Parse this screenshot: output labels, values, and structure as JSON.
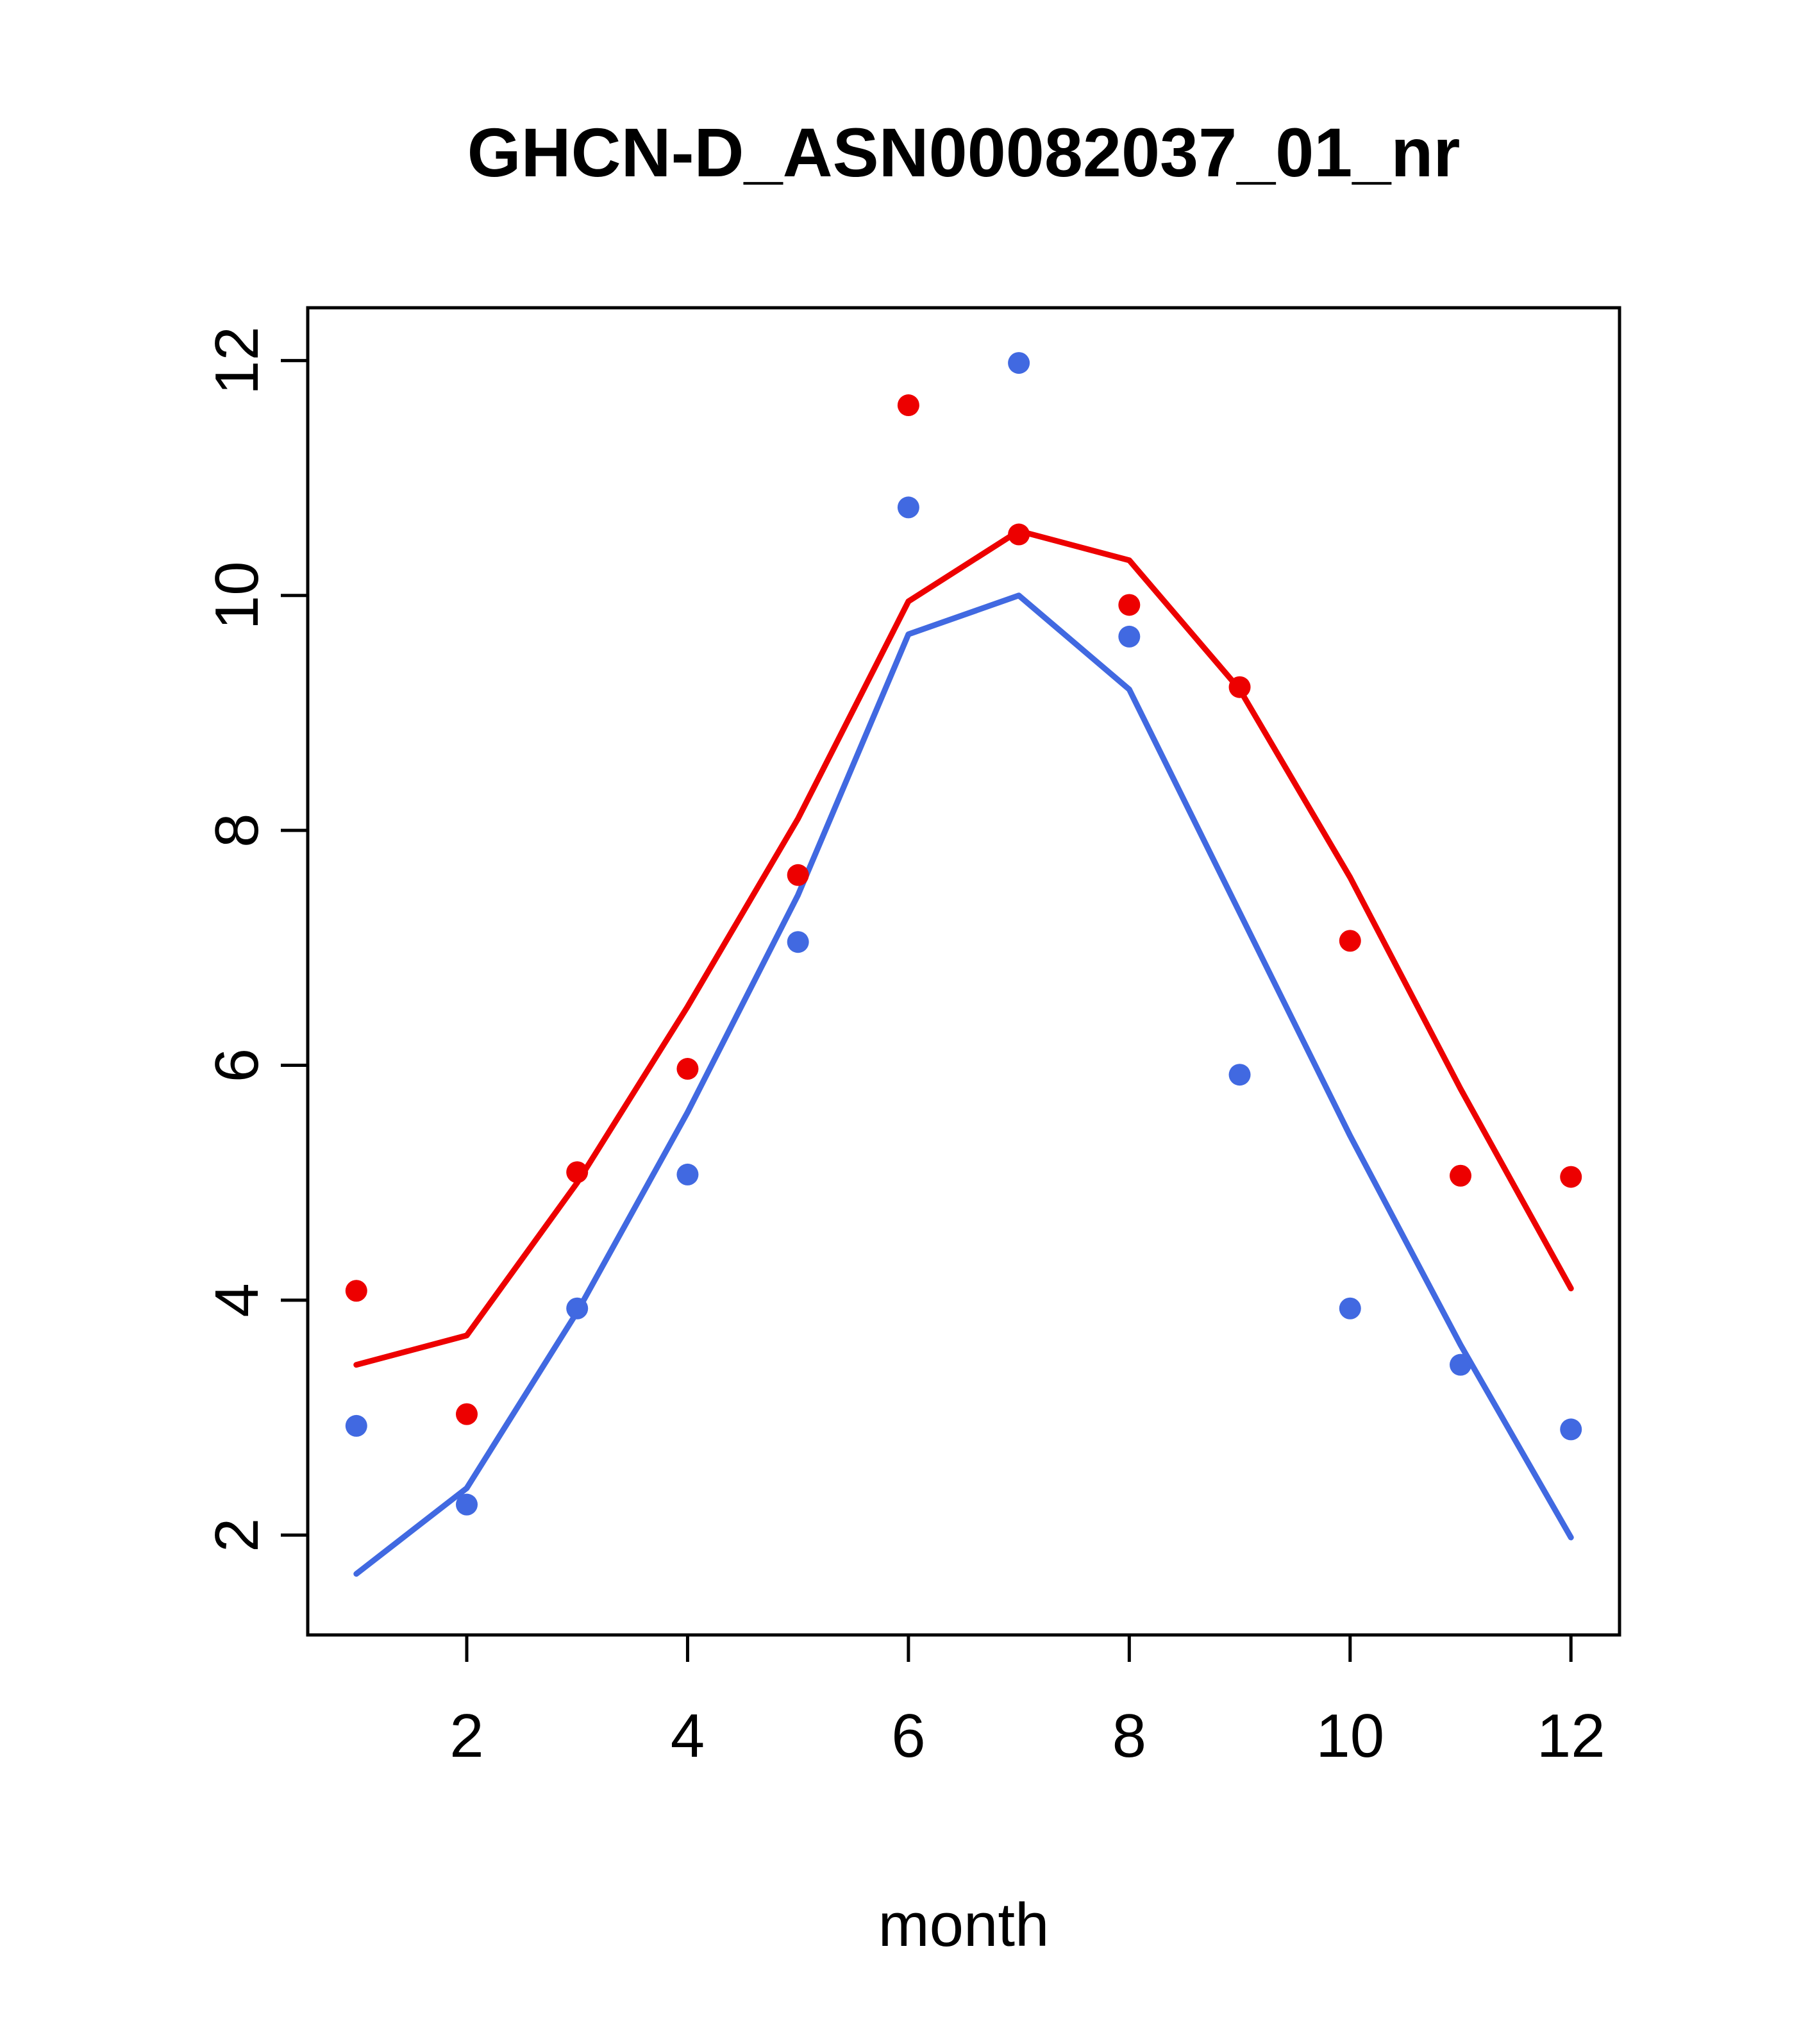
{
  "chart_data": {
    "type": "line",
    "title": "GHCN-D_ASN00082037_01_nr",
    "xlabel": "month",
    "ylabel": "",
    "grid": false,
    "legend": "none",
    "axis_color": "#000000",
    "x": [
      1,
      2,
      3,
      4,
      5,
      6,
      7,
      8,
      9,
      10,
      11,
      12
    ],
    "xlim": [
      0.56,
      12.44
    ],
    "ylim": [
      1.15,
      12.45
    ],
    "x_ticks": [
      2,
      4,
      6,
      8,
      10,
      12
    ],
    "y_ticks": [
      2,
      4,
      6,
      8,
      10,
      12
    ],
    "series": [
      {
        "name": "red-line",
        "kind": "line",
        "color": "#ED0000",
        "values": [
          3.45,
          3.7,
          5.0,
          6.5,
          8.1,
          9.95,
          10.55,
          10.3,
          9.2,
          7.6,
          5.8,
          4.1
        ]
      },
      {
        "name": "blue-line",
        "kind": "line",
        "color": "#4169E1",
        "values": [
          1.67,
          2.4,
          3.9,
          5.6,
          7.45,
          9.67,
          10.0,
          9.2,
          7.3,
          5.4,
          3.62,
          1.98
        ]
      },
      {
        "name": "red-points",
        "kind": "points",
        "color": "#ED0000",
        "values": [
          4.08,
          3.03,
          5.09,
          5.97,
          7.62,
          11.62,
          10.52,
          9.92,
          9.22,
          7.06,
          5.06,
          5.05
        ]
      },
      {
        "name": "blue-points",
        "kind": "points",
        "color": "#4169E1",
        "values": [
          2.93,
          2.26,
          3.93,
          5.07,
          7.05,
          10.75,
          11.98,
          9.65,
          5.92,
          3.93,
          3.45,
          2.9
        ]
      }
    ]
  }
}
